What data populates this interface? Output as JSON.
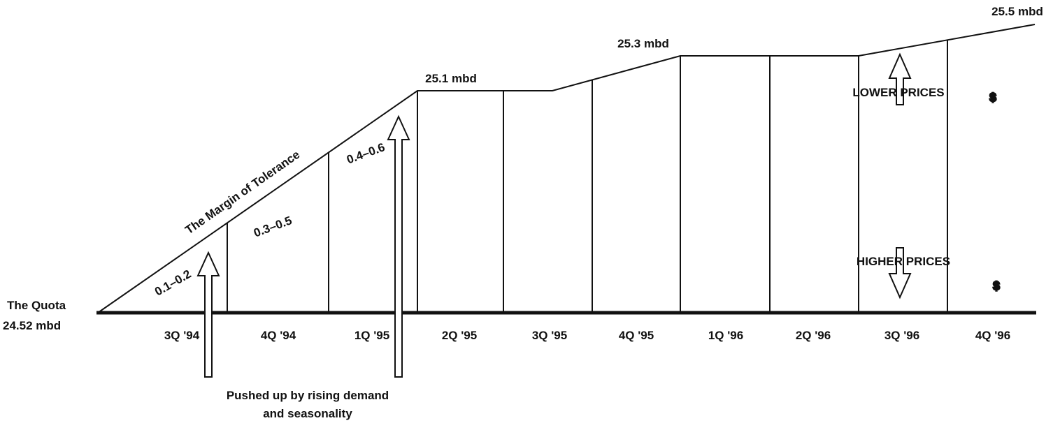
{
  "quota": {
    "label": "The Quota",
    "value": "24.52 mbd"
  },
  "title": "The Margin of Tolerance",
  "quarters": [
    "3Q '94",
    "4Q '94",
    "1Q '95",
    "2Q '95",
    "3Q '95",
    "4Q '95",
    "1Q '96",
    "2Q '96",
    "3Q '96",
    "4Q '96"
  ],
  "ranges": [
    "0.1–0.2",
    "0.3–0.5",
    "0.4–0.6"
  ],
  "levels": [
    "25.1 mbd",
    "25.3 mbd",
    "25.5 mbd"
  ],
  "prices": {
    "lower": "LOWER PRICES",
    "higher": "HIGHER PRICES",
    "symbol": "$"
  },
  "note": [
    "Pushed up by rising demand",
    "and seasonality"
  ]
}
